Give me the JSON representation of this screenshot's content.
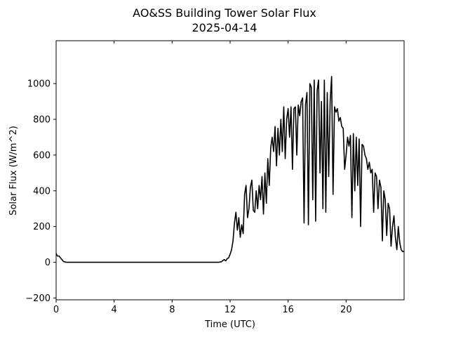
{
  "chart_data": {
    "type": "line",
    "title": "AO&SS Building Tower Solar Flux",
    "subtitle": "2025-04-14",
    "xlabel": "Time (UTC)",
    "ylabel": "Solar Flux (W/m^2)",
    "xlim": [
      0,
      24
    ],
    "ylim": [
      -210,
      1240
    ],
    "x_ticks": [
      0,
      4,
      8,
      12,
      16,
      20
    ],
    "y_ticks": [
      -200,
      0,
      200,
      400,
      600,
      800,
      1000
    ],
    "grid": false,
    "line_color": "#000000",
    "series": [
      {
        "x": [
          0,
          0.05,
          0.1,
          0.2,
          0.3,
          0.4,
          0.5,
          0.6,
          0.7,
          0.8,
          1.0,
          2,
          3,
          4,
          5,
          6,
          7,
          8,
          9,
          10,
          11,
          11.2,
          11.4,
          11.5,
          11.6,
          11.7,
          11.8,
          11.9,
          12.0,
          12.1,
          12.2,
          12.3,
          12.4,
          12.5,
          12.6,
          12.7,
          12.8,
          12.9,
          13.0,
          13.1,
          13.2,
          13.3,
          13.4,
          13.5,
          13.6,
          13.7,
          13.8,
          13.9,
          14.0,
          14.1,
          14.2,
          14.3,
          14.4,
          14.5,
          14.6,
          14.7,
          14.8,
          14.9,
          15.0,
          15.1,
          15.2,
          15.3,
          15.4,
          15.5,
          15.6,
          15.7,
          15.8,
          15.9,
          16.0,
          16.1,
          16.2,
          16.3,
          16.4,
          16.5,
          16.6,
          16.7,
          16.8,
          16.9,
          17.0,
          17.1,
          17.2,
          17.3,
          17.4,
          17.5,
          17.6,
          17.7,
          17.8,
          17.9,
          18.0,
          18.1,
          18.2,
          18.3,
          18.4,
          18.5,
          18.6,
          18.7,
          18.8,
          18.9,
          19.0,
          19.1,
          19.2,
          19.3,
          19.4,
          19.5,
          19.6,
          19.7,
          19.8,
          19.9,
          20.0,
          20.1,
          20.2,
          20.3,
          20.4,
          20.5,
          20.6,
          20.7,
          20.8,
          20.9,
          21.0,
          21.1,
          21.2,
          21.3,
          21.4,
          21.5,
          21.6,
          21.7,
          21.8,
          21.9,
          22.0,
          22.1,
          22.2,
          22.3,
          22.4,
          22.5,
          22.6,
          22.7,
          22.8,
          22.9,
          23.0,
          23.1,
          23.2,
          23.3,
          23.4,
          23.5,
          23.6,
          23.7,
          23.8,
          23.9,
          24.0
        ],
        "values": [
          50,
          40,
          35,
          35,
          25,
          15,
          5,
          2,
          0,
          0,
          0,
          0,
          0,
          0,
          0,
          0,
          0,
          0,
          0,
          0,
          0,
          0,
          3,
          10,
          15,
          8,
          20,
          25,
          45,
          70,
          120,
          220,
          280,
          180,
          250,
          140,
          210,
          160,
          380,
          430,
          250,
          300,
          420,
          460,
          290,
          280,
          400,
          300,
          430,
          350,
          480,
          270,
          500,
          330,
          580,
          430,
          640,
          700,
          620,
          760,
          540,
          750,
          600,
          800,
          620,
          870,
          580,
          800,
          860,
          700,
          870,
          520,
          860,
          870,
          600,
          880,
          820,
          900,
          920,
          220,
          880,
          950,
          210,
          1000,
          980,
          350,
          1020,
          230,
          960,
          1020,
          500,
          900,
          300,
          1020,
          280,
          950,
          480,
          900,
          1040,
          380,
          870,
          840,
          860,
          790,
          810,
          760,
          750,
          520,
          600,
          700,
          650,
          710,
          250,
          720,
          400,
          700,
          430,
          690,
          200,
          660,
          650,
          600,
          580,
          520,
          560,
          500,
          520,
          280,
          500,
          480,
          300,
          460,
          420,
          120,
          400,
          350,
          150,
          330,
          300,
          90,
          200,
          260,
          140,
          70,
          200,
          110,
          70,
          60,
          60
        ]
      }
    ]
  }
}
